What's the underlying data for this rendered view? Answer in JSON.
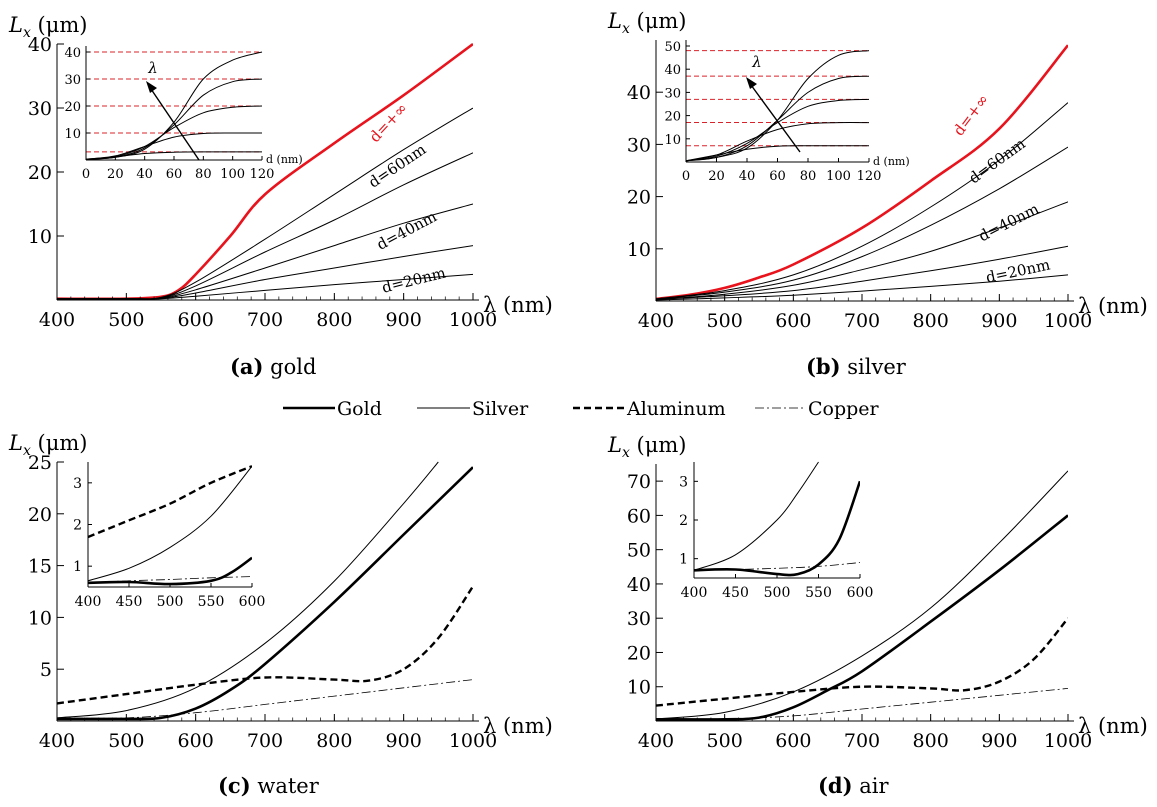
{
  "panels": [
    {
      "id": "a",
      "caption_letter": "(a)",
      "caption_text": "gold",
      "ylabel_sym": "L",
      "ylabel_sub": "x",
      "ylabel_unit": "(μm)",
      "xlabel": "λ (nm)",
      "xticks": [
        "400",
        "500",
        "600",
        "700",
        "800",
        "900",
        "1000"
      ],
      "yticks": [
        "10",
        "20",
        "30",
        "40"
      ],
      "curve_labels": [
        "d=+∞",
        "d=60nm",
        "d=40nm",
        "d=20nm"
      ],
      "inset": {
        "xlabel": "d (nm)",
        "xticks": [
          "0",
          "20",
          "40",
          "60",
          "80",
          "100",
          "120"
        ],
        "yticks": [
          "10",
          "20",
          "30",
          "40"
        ],
        "arrow_label": "λ"
      }
    },
    {
      "id": "b",
      "caption_letter": "(b)",
      "caption_text": "silver",
      "ylabel_sym": "L",
      "ylabel_sub": "x",
      "ylabel_unit": "(μm)",
      "xlabel": "λ (nm)",
      "xticks": [
        "400",
        "500",
        "600",
        "700",
        "800",
        "900",
        "1000"
      ],
      "yticks": [
        "10",
        "20",
        "30",
        "40"
      ],
      "curve_labels": [
        "d=+∞",
        "d=60nm",
        "d=40nm",
        "d=20nm"
      ],
      "inset": {
        "xlabel": "d (nm)",
        "xticks": [
          "0",
          "20",
          "40",
          "60",
          "80",
          "100",
          "120"
        ],
        "yticks": [
          "10",
          "20",
          "30",
          "40",
          "50"
        ],
        "arrow_label": "λ"
      }
    },
    {
      "id": "c",
      "caption_letter": "(c)",
      "caption_text": "water",
      "ylabel_sym": "L",
      "ylabel_sub": "x",
      "ylabel_unit": "(μm)",
      "xlabel": "λ (nm)",
      "xticks": [
        "400",
        "500",
        "600",
        "700",
        "800",
        "900",
        "1000"
      ],
      "yticks": [
        "5",
        "10",
        "15",
        "20",
        "25"
      ],
      "inset": {
        "xticks": [
          "400",
          "450",
          "500",
          "550",
          "600"
        ],
        "yticks": [
          "1",
          "2",
          "3"
        ]
      }
    },
    {
      "id": "d",
      "caption_letter": "(d)",
      "caption_text": "air",
      "ylabel_sym": "L",
      "ylabel_sub": "x",
      "ylabel_unit": "(μm)",
      "xlabel": "λ (nm)",
      "xticks": [
        "400",
        "500",
        "600",
        "700",
        "800",
        "900",
        "1000"
      ],
      "yticks": [
        "10",
        "20",
        "30",
        "40",
        "50",
        "60",
        "70"
      ],
      "inset": {
        "xticks": [
          "400",
          "450",
          "500",
          "550",
          "600"
        ],
        "yticks": [
          "1",
          "2",
          "3"
        ]
      }
    }
  ],
  "legend": [
    "Gold",
    "Silver",
    "Aluminum",
    "Copper"
  ],
  "colors": {
    "highlight": "#e8131c",
    "dashed_ref": "#d9232a",
    "line": "#000000"
  },
  "chart_data": [
    {
      "type": "line",
      "panel": "a",
      "x_range": [
        400,
        1000
      ],
      "ylim": [
        0,
        40
      ],
      "series": [
        {
          "name": "d=+∞",
          "color": "#e8131c",
          "x": [
            400,
            500,
            550,
            575,
            600,
            650,
            700,
            800,
            900,
            1000
          ],
          "y": [
            0.2,
            0.2,
            0.5,
            1.5,
            4,
            10,
            16.5,
            24.5,
            32,
            40
          ]
        },
        {
          "name": "d=60nm",
          "x": [
            400,
            500,
            550,
            600,
            700,
            800,
            900,
            1000
          ],
          "y": [
            0.2,
            0.2,
            0.4,
            2.8,
            9.5,
            16.5,
            23.5,
            30
          ]
        },
        {
          "x": [
            400,
            500,
            550,
            600,
            700,
            800,
            900,
            1000
          ],
          "y": [
            0.2,
            0.2,
            0.35,
            2.2,
            7.5,
            12.5,
            18,
            23
          ]
        },
        {
          "name": "d=40nm",
          "x": [
            400,
            500,
            550,
            600,
            700,
            800,
            900,
            1000
          ],
          "y": [
            0.2,
            0.2,
            0.3,
            1.6,
            5,
            8.5,
            12,
            15
          ]
        },
        {
          "x": [
            400,
            500,
            550,
            600,
            700,
            800,
            900,
            1000
          ],
          "y": [
            0.2,
            0.2,
            0.25,
            1.1,
            3.2,
            5,
            6.8,
            8.5
          ]
        },
        {
          "name": "d=20nm",
          "x": [
            400,
            500,
            550,
            600,
            700,
            800,
            900,
            1000
          ],
          "y": [
            0.2,
            0.2,
            0.2,
            0.6,
            1.5,
            2.4,
            3.2,
            4
          ]
        }
      ]
    },
    {
      "type": "line",
      "panel": "a-inset",
      "x_range": [
        0,
        120
      ],
      "ylim": [
        0,
        40
      ],
      "xlabel": "d (nm)",
      "reference_levels": [
        3,
        10,
        20,
        30,
        40
      ],
      "series": [
        {
          "x": [
            0,
            20,
            40,
            60,
            80,
            100,
            120
          ],
          "y": [
            0.3,
            1,
            4,
            14,
            30,
            37,
            40
          ]
        },
        {
          "x": [
            0,
            20,
            40,
            60,
            80,
            100,
            120
          ],
          "y": [
            0.3,
            1,
            4.5,
            13,
            24,
            29,
            30
          ]
        },
        {
          "x": [
            0,
            20,
            40,
            60,
            80,
            100,
            120
          ],
          "y": [
            0.3,
            1.2,
            5,
            12,
            17.5,
            19.5,
            20
          ]
        },
        {
          "x": [
            0,
            20,
            40,
            60,
            80,
            100,
            120
          ],
          "y": [
            0.3,
            1.5,
            5,
            8.5,
            9.8,
            10,
            10
          ]
        },
        {
          "x": [
            0,
            20,
            40,
            60,
            80,
            100,
            120
          ],
          "y": [
            0.3,
            1.2,
            2.4,
            2.9,
            3,
            3,
            3
          ]
        }
      ]
    },
    {
      "type": "line",
      "panel": "b",
      "x_range": [
        400,
        1000
      ],
      "ylim": [
        0,
        50
      ],
      "series": [
        {
          "name": "d=+∞",
          "color": "#e8131c",
          "x": [
            400,
            450,
            500,
            550,
            600,
            700,
            800,
            900,
            1000
          ],
          "y": [
            0.4,
            1.2,
            2.5,
            4.5,
            7,
            14,
            23,
            33,
            49
          ]
        },
        {
          "name": "d=60nm",
          "x": [
            400,
            500,
            600,
            700,
            800,
            900,
            1000
          ],
          "y": [
            0.4,
            2,
            5,
            10.5,
            18,
            27,
            38
          ]
        },
        {
          "x": [
            400,
            500,
            600,
            700,
            800,
            900,
            1000
          ],
          "y": [
            0.4,
            1.7,
            4,
            8.5,
            14.5,
            21.5,
            29.5
          ]
        },
        {
          "name": "d=40nm",
          "x": [
            400,
            500,
            600,
            700,
            800,
            900,
            1000
          ],
          "y": [
            0.3,
            1.3,
            3,
            6,
            9.5,
            14,
            19
          ]
        },
        {
          "x": [
            400,
            500,
            600,
            700,
            800,
            900,
            1000
          ],
          "y": [
            0.3,
            1,
            2,
            3.8,
            5.8,
            8,
            10.5
          ]
        },
        {
          "name": "d=20nm",
          "x": [
            400,
            500,
            600,
            700,
            800,
            900,
            1000
          ],
          "y": [
            0.2,
            0.6,
            1.1,
            1.9,
            2.8,
            3.8,
            5
          ]
        }
      ]
    },
    {
      "type": "line",
      "panel": "b-inset",
      "x_range": [
        0,
        120
      ],
      "ylim": [
        0,
        50
      ],
      "xlabel": "d (nm)",
      "reference_levels": [
        7,
        17,
        27,
        37,
        48
      ],
      "series": [
        {
          "x": [
            0,
            20,
            40,
            60,
            80,
            100,
            120
          ],
          "y": [
            0.5,
            2,
            6,
            18,
            36,
            46,
            48
          ]
        },
        {
          "x": [
            0,
            20,
            40,
            60,
            80,
            100,
            120
          ],
          "y": [
            0.5,
            2,
            7,
            18,
            30,
            36,
            37
          ]
        },
        {
          "x": [
            0,
            20,
            40,
            60,
            80,
            100,
            120
          ],
          "y": [
            0.5,
            2.5,
            8,
            17,
            24,
            26.5,
            27
          ]
        },
        {
          "x": [
            0,
            20,
            40,
            60,
            80,
            100,
            120
          ],
          "y": [
            0.5,
            3,
            9,
            14,
            16.5,
            17,
            17
          ]
        },
        {
          "x": [
            0,
            20,
            40,
            60,
            80,
            100,
            120
          ],
          "y": [
            0.5,
            3,
            5.5,
            6.8,
            7,
            7,
            7
          ]
        }
      ]
    },
    {
      "type": "line",
      "panel": "c",
      "x_range": [
        400,
        1000
      ],
      "ylim": [
        0,
        25
      ],
      "series": [
        {
          "name": "Gold",
          "x": [
            400,
            500,
            550,
            600,
            650,
            700,
            800,
            900,
            1000
          ],
          "y": [
            0.2,
            0.2,
            0.3,
            1.2,
            3,
            5.5,
            11.5,
            18,
            24.5
          ]
        },
        {
          "name": "Silver",
          "x": [
            400,
            500,
            600,
            700,
            800,
            900,
            950
          ],
          "y": [
            0.3,
            1,
            3.2,
            7.5,
            13.5,
            21,
            25
          ]
        },
        {
          "name": "Aluminum",
          "x": [
            400,
            500,
            600,
            700,
            800,
            850,
            900,
            950,
            1000
          ],
          "y": [
            1.7,
            2.6,
            3.5,
            4.2,
            4,
            3.9,
            5,
            8,
            13
          ]
        },
        {
          "name": "Copper",
          "x": [
            400,
            500,
            600,
            700,
            800,
            900,
            1000
          ],
          "y": [
            0.3,
            0.3,
            0.8,
            1.6,
            2.4,
            3.2,
            4
          ]
        }
      ]
    },
    {
      "type": "line",
      "panel": "c-inset",
      "x_range": [
        400,
        600
      ],
      "ylim": [
        0.5,
        3.5
      ],
      "series": [
        {
          "name": "Gold",
          "x": [
            400,
            450,
            500,
            550,
            575,
            600
          ],
          "y": [
            0.6,
            0.62,
            0.57,
            0.65,
            0.85,
            1.2
          ]
        },
        {
          "name": "Silver",
          "x": [
            400,
            450,
            500,
            550,
            600
          ],
          "y": [
            0.65,
            0.95,
            1.45,
            2.2,
            3.4
          ]
        },
        {
          "name": "Aluminum",
          "x": [
            400,
            450,
            500,
            550,
            600
          ],
          "y": [
            1.7,
            2.1,
            2.5,
            3,
            3.4
          ]
        },
        {
          "name": "Copper",
          "x": [
            400,
            450,
            500,
            550,
            600
          ],
          "y": [
            0.6,
            0.65,
            0.68,
            0.72,
            0.75
          ]
        }
      ]
    },
    {
      "type": "line",
      "panel": "d",
      "x_range": [
        400,
        1000
      ],
      "ylim": [
        0,
        75
      ],
      "series": [
        {
          "name": "Gold",
          "x": [
            400,
            500,
            550,
            600,
            650,
            700,
            800,
            900,
            1000
          ],
          "y": [
            0.5,
            0.5,
            1,
            4,
            9,
            14.5,
            29,
            44,
            60
          ]
        },
        {
          "name": "Silver",
          "x": [
            400,
            500,
            600,
            700,
            800,
            900,
            1000
          ],
          "y": [
            0.6,
            2.5,
            8.5,
            19,
            33,
            52,
            73
          ]
        },
        {
          "name": "Aluminum",
          "x": [
            400,
            500,
            600,
            700,
            800,
            850,
            900,
            950,
            1000
          ],
          "y": [
            4.5,
            6.5,
            8.5,
            10,
            9.5,
            9,
            11.5,
            18,
            30
          ]
        },
        {
          "name": "Copper",
          "x": [
            400,
            500,
            600,
            700,
            800,
            900,
            1000
          ],
          "y": [
            0.5,
            0.6,
            1.5,
            3.5,
            5.5,
            7.5,
            9.5
          ]
        }
      ]
    },
    {
      "type": "line",
      "panel": "d-inset",
      "x_range": [
        400,
        600
      ],
      "ylim": [
        0.5,
        3.5
      ],
      "series": [
        {
          "name": "Gold",
          "x": [
            400,
            450,
            500,
            525,
            550,
            575,
            600
          ],
          "y": [
            0.7,
            0.72,
            0.6,
            0.6,
            0.85,
            1.5,
            3
          ]
        },
        {
          "name": "Silver",
          "x": [
            400,
            450,
            500,
            525,
            550
          ],
          "y": [
            0.7,
            1.1,
            2,
            2.7,
            3.5
          ]
        },
        {
          "name": "Copper",
          "x": [
            400,
            450,
            500,
            550,
            600
          ],
          "y": [
            0.7,
            0.72,
            0.75,
            0.8,
            0.9
          ]
        }
      ]
    }
  ]
}
